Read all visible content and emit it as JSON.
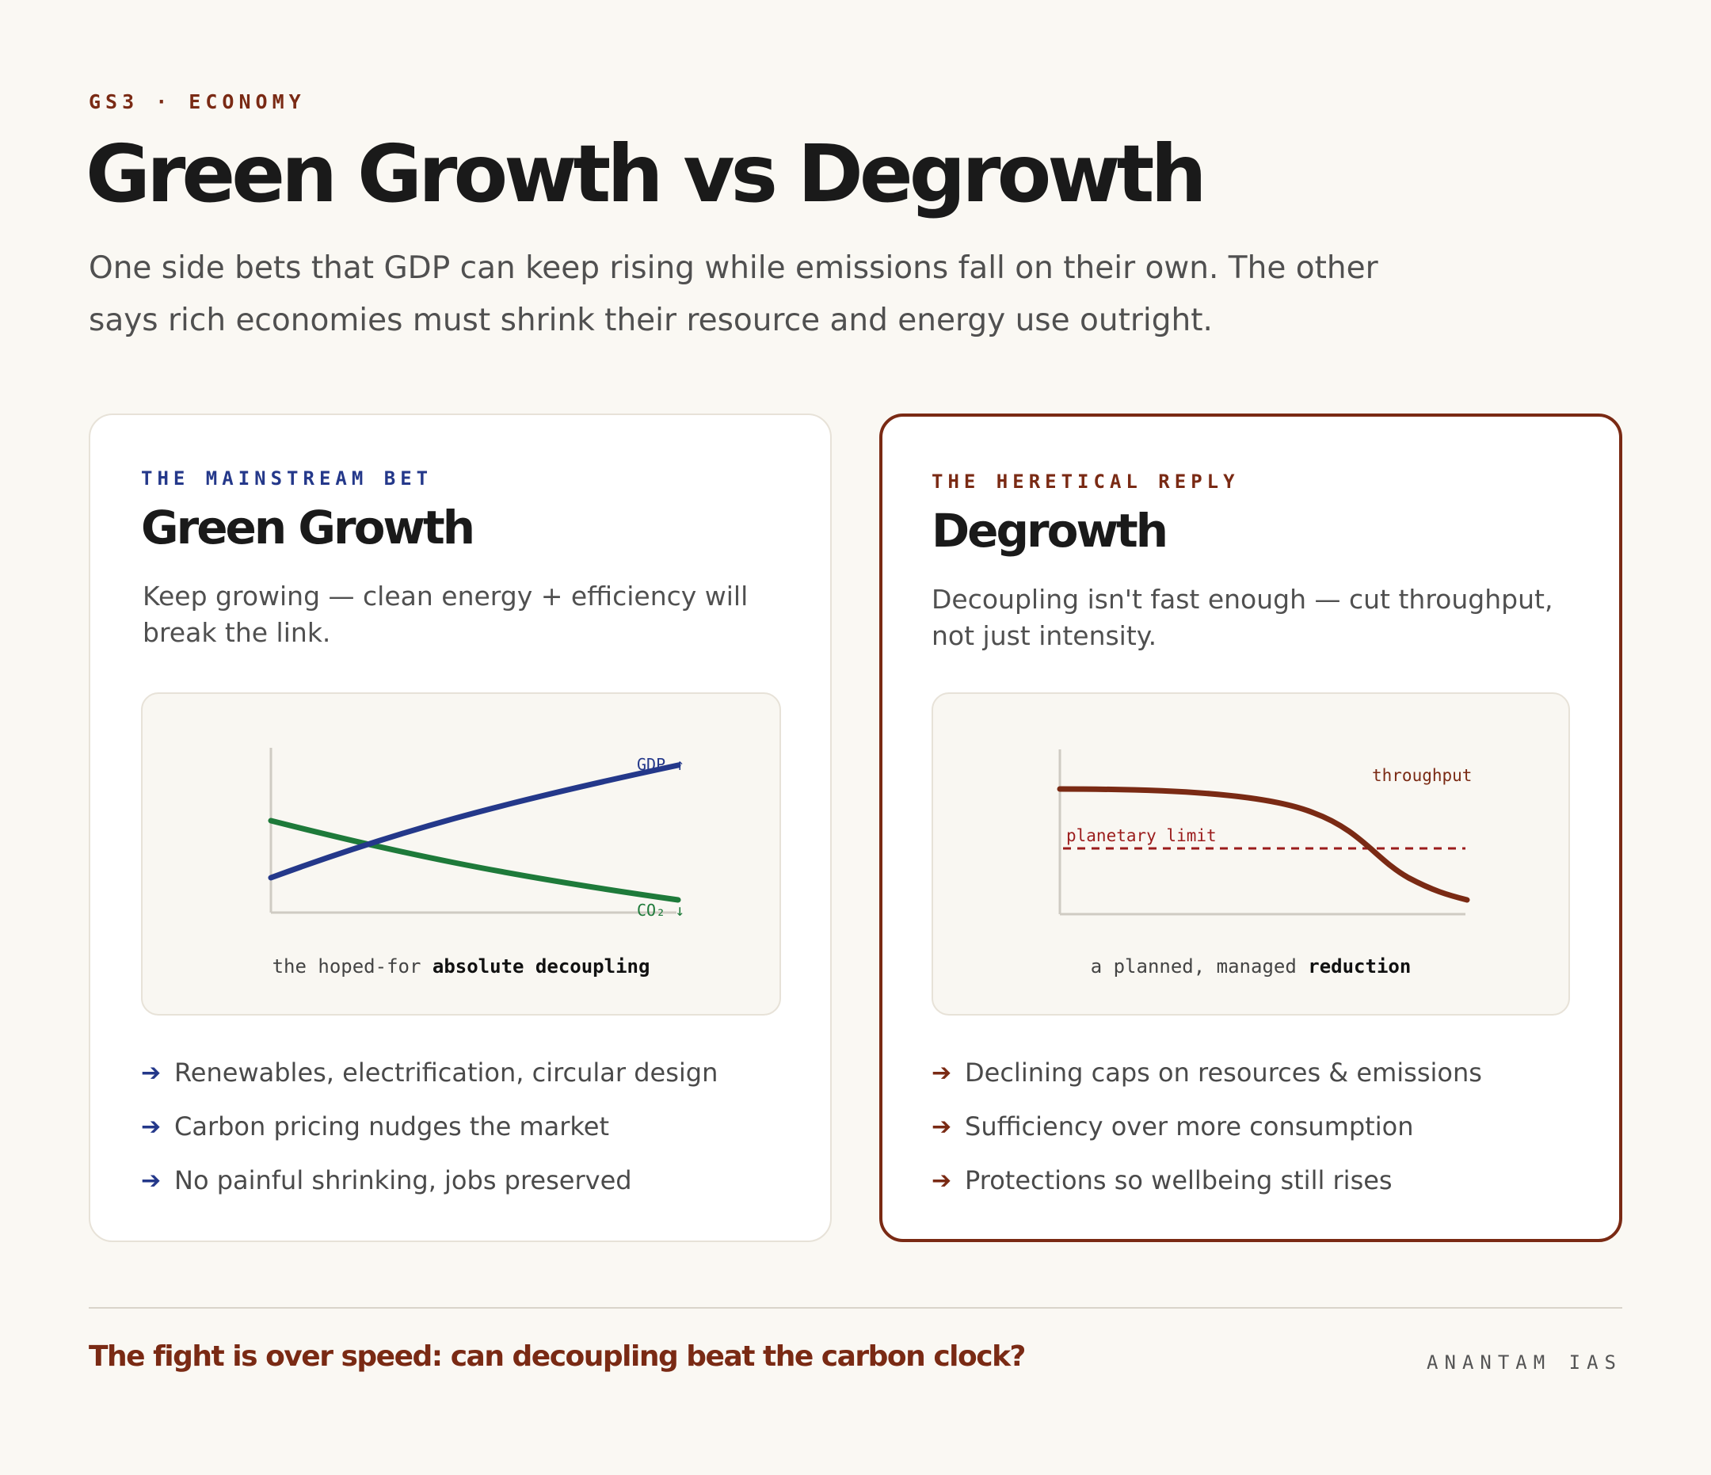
{
  "header": {
    "kicker": "GS3 · ECONOMY",
    "title": "Green Growth vs Degrowth",
    "subtitle": "One side bets that GDP can keep rising while emissions fall on their own. The other says rich economies must shrink their resource and energy use outright."
  },
  "left_card": {
    "label": "THE MAINSTREAM BET",
    "title": "Green Growth",
    "description": "Keep growing — clean energy + efficiency will break the link.",
    "chart": {
      "gdp_label": "GDP ↑",
      "co2_label": "CO₂ ↓",
      "caption_prefix": "the hoped-for",
      "caption_bold": "absolute decoupling"
    },
    "bullets": [
      {
        "icon": "arrow-right-icon",
        "text": "Renewables, electrification, circular design"
      },
      {
        "icon": "arrow-right-icon",
        "text": "Carbon pricing nudges the market"
      },
      {
        "icon": "arrow-right-icon",
        "text": "No painful shrinking, jobs preserved"
      }
    ]
  },
  "right_card": {
    "label": "THE HERETICAL REPLY",
    "title": "Degrowth",
    "description": "Decoupling isn't fast enough — cut throughput, not just intensity.",
    "chart": {
      "throughput_label": "throughput",
      "limit_label": "planetary limit",
      "caption_prefix": "a planned, managed",
      "caption_bold": "reduction"
    },
    "bullets": [
      {
        "icon": "arrow-right-icon",
        "text": "Declining caps on resources & emissions"
      },
      {
        "icon": "arrow-right-icon",
        "text": "Sufficiency over more consumption"
      },
      {
        "icon": "arrow-right-icon",
        "text": "Protections so wellbeing still rises"
      }
    ]
  },
  "colors": {
    "accent_rust": "#7a2a14",
    "accent_navy": "#24388a",
    "accent_green": "#1e7a3a"
  },
  "footer": {
    "question": "The fight is over speed: can decoupling beat the carbon clock?",
    "brand": "ANANTAM IAS"
  }
}
